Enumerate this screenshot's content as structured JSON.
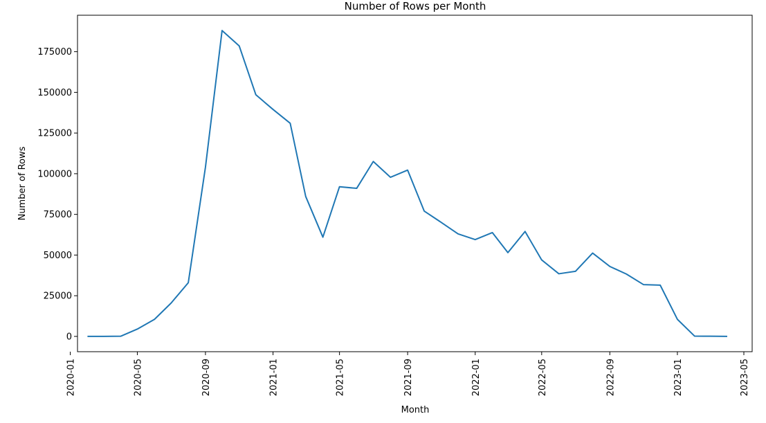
{
  "chart_data": {
    "type": "line",
    "title": "Number of Rows per Month",
    "xlabel": "Month",
    "ylabel": "Number of Rows",
    "x": [
      "2020-02",
      "2020-03",
      "2020-04",
      "2020-05",
      "2020-06",
      "2020-07",
      "2020-08",
      "2020-09",
      "2020-10",
      "2020-11",
      "2020-12",
      "2021-01",
      "2021-02",
      "2021-03",
      "2021-04",
      "2021-05",
      "2021-06",
      "2021-07",
      "2021-08",
      "2021-09",
      "2021-10",
      "2021-11",
      "2021-12",
      "2022-01",
      "2022-02",
      "2022-03",
      "2022-04",
      "2022-05",
      "2022-06",
      "2022-07",
      "2022-08",
      "2022-09",
      "2022-10",
      "2022-11",
      "2022-12",
      "2023-01",
      "2023-02",
      "2023-03",
      "2023-04"
    ],
    "series": [
      {
        "color": "#1f77b4",
        "values": [
          0,
          0,
          100,
          4500,
          10500,
          20500,
          33000,
          104000,
          188000,
          178500,
          148500,
          139500,
          131000,
          86000,
          61000,
          92000,
          91000,
          107500,
          97800,
          102200,
          77000,
          70000,
          63000,
          59500,
          63800,
          51500,
          64500,
          47000,
          38500,
          40000,
          51200,
          43000,
          38300,
          31800,
          31500,
          10500,
          200,
          100,
          0
        ]
      }
    ],
    "xticks": [
      "2020-01",
      "2020-05",
      "2020-09",
      "2021-01",
      "2021-05",
      "2021-09",
      "2022-01",
      "2022-05",
      "2022-09",
      "2023-01",
      "2023-05"
    ],
    "yticks": [
      0,
      25000,
      50000,
      75000,
      100000,
      125000,
      150000,
      175000
    ],
    "ylim": [
      -9400,
      197400
    ],
    "xlim": [
      "2020-01-14",
      "2023-05-16"
    ],
    "grid": false
  }
}
